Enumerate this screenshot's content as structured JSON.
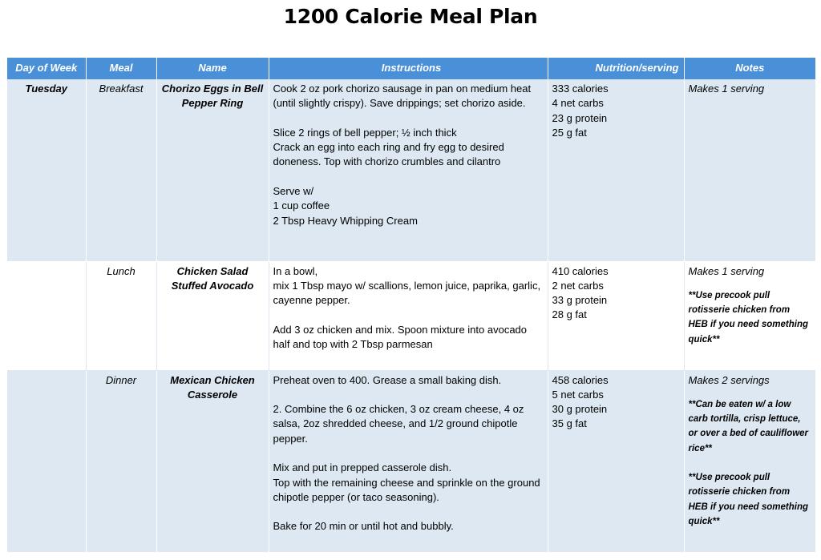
{
  "title": "1200 Calorie Meal Plan",
  "columns": {
    "day": "Day of Week",
    "meal": "Meal",
    "name": "Name",
    "instructions": "Instructions",
    "nutrition": "Nutrition/serving",
    "notes": "Notes"
  },
  "rows": [
    {
      "day": "Tuesday",
      "meal": "Breakfast",
      "name": "Chorizo Eggs in Bell Pepper Ring",
      "instructions": [
        "Cook 2 oz pork chorizo sausage in pan on medium heat (until slightly crispy). Save drippings; set chorizo aside.",
        "",
        "Slice 2 rings of bell pepper; ½ inch thick",
        "Crack an egg into each ring and fry egg to desired doneness. Top with chorizo crumbles and cilantro",
        "",
        "Serve w/",
        "1 cup coffee",
        "2 Tbsp Heavy Whipping Cream"
      ],
      "nutrition": [
        "333 calories",
        "4 net carbs",
        "23 g protein",
        "25 g fat"
      ],
      "notes_main": "Makes 1 serving",
      "notes_tips": []
    },
    {
      "day": "",
      "meal": "Lunch",
      "name": "Chicken Salad Stuffed Avocado",
      "instructions": [
        "In a bowl,",
        "mix 1 Tbsp mayo w/ scallions, lemon juice, paprika, garlic, cayenne pepper.",
        "",
        "Add 3 oz chicken and mix. Spoon mixture into avocado half and top with 2 Tbsp parmesan"
      ],
      "nutrition": [
        "410 calories",
        "2 net carbs",
        "33 g protein",
        "28 g fat"
      ],
      "notes_main": "Makes 1 serving",
      "notes_tips": [
        "**Use precook pull rotisserie chicken from HEB if you need something quick**"
      ]
    },
    {
      "day": "",
      "meal": "Dinner",
      "name": "Mexican Chicken Casserole",
      "instructions": [
        "Preheat oven to 400. Grease a small baking dish.",
        "",
        "2. Combine the 6 oz chicken, 3 oz cream cheese, 4 oz salsa, 2oz shredded cheese, and 1/2 ground chipotle pepper.",
        "",
        "Mix and put in prepped casserole dish.",
        "Top with the remaining cheese and sprinkle on the ground chipotle pepper (or taco seasoning).",
        "",
        "Bake for 20 min or until hot and bubbly."
      ],
      "nutrition": [
        "458 calories",
        "5 net carbs",
        "30 g protein",
        "35 g fat"
      ],
      "notes_main": "Makes 2 servings",
      "notes_tips": [
        "**Can be eaten w/ a low carb tortilla, crisp lettuce, or over a bed of cauliflower rice**",
        "**Use precook pull rotisserie chicken from HEB if you need something quick**"
      ]
    }
  ]
}
